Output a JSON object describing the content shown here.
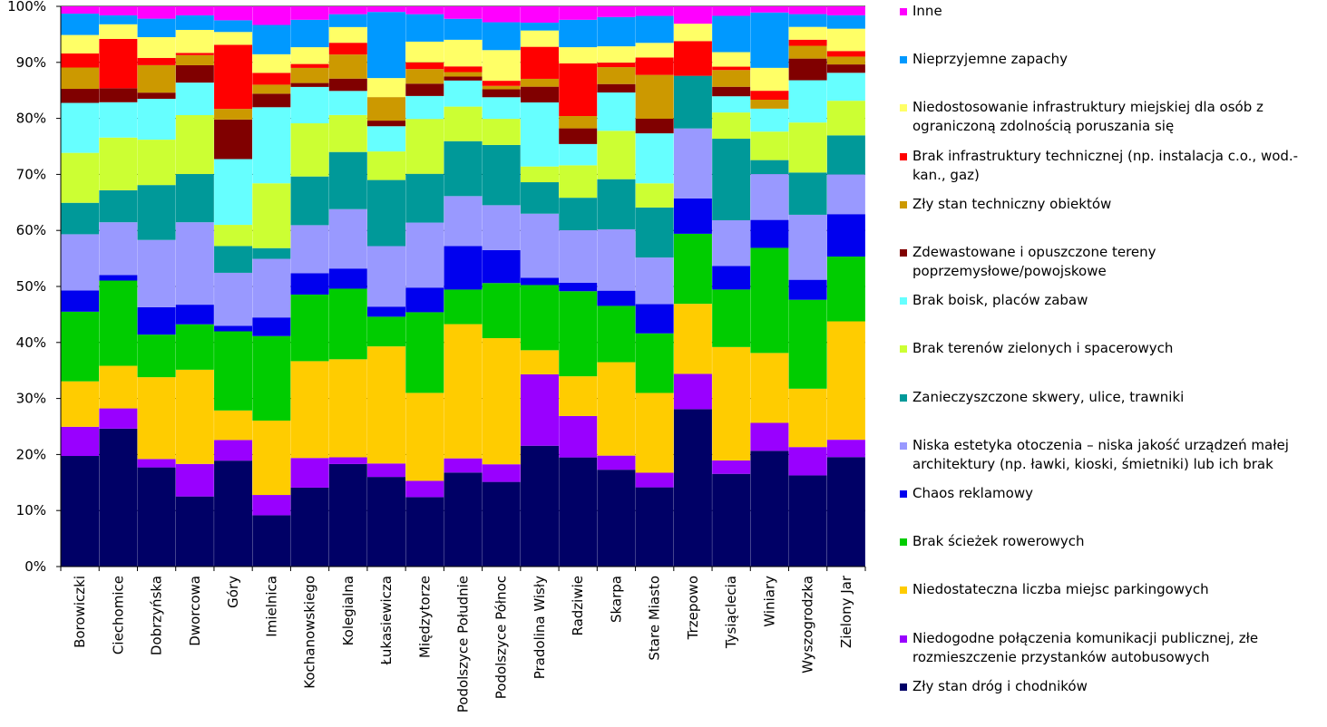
{
  "chart_data": {
    "type": "bar",
    "stacked": true,
    "normalized": true,
    "ylim": [
      0,
      100
    ],
    "y_ticks": [
      "0%",
      "10%",
      "20%",
      "30%",
      "40%",
      "50%",
      "60%",
      "70%",
      "80%",
      "90%",
      "100%"
    ],
    "legend_position": "right",
    "categories": [
      "Borowiczki",
      "Ciechomice",
      "Dobrzyńska",
      "Dworcowa",
      "Góry",
      "Imielnica",
      "Kochanowskiego",
      "Kolegialna",
      "Łukasiewicza",
      "Międzytorze",
      "Podolszyce Południe",
      "Podolszyce Północ",
      "Pradolina Wisły",
      "Radziwie",
      "Skarpa",
      "Stare Miasto",
      "Trzepowo",
      "Tysiąclecia",
      "Winiary",
      "Wyszogrodzka",
      "Zielony Jar"
    ],
    "series": [
      {
        "name": "Zły stan dróg i chodników",
        "color": "#000066",
        "values": [
          19.7,
          24.6,
          17.7,
          12.5,
          19.0,
          9.1,
          14.1,
          18.3,
          16.0,
          12.4,
          16.6,
          14.9,
          21.5,
          19.5,
          17.2,
          14.1,
          28.1,
          16.6,
          20.7,
          16.4,
          19.6
        ]
      },
      {
        "name": "Niedogodne połączenia komunikacji publicznej, złe rozmieszczenie przystanków autobusowych",
        "color": "#9900FF",
        "values": [
          5.2,
          3.6,
          1.5,
          5.8,
          3.7,
          3.6,
          5.3,
          1.2,
          2.4,
          2.9,
          2.5,
          3.1,
          12.7,
          7.4,
          2.5,
          2.6,
          6.3,
          2.4,
          5.0,
          5.1,
          3.1
        ]
      },
      {
        "name": "Niedostateczna liczba miejsc parkingowych",
        "color": "#FFCC00",
        "values": [
          8.1,
          7.6,
          14.6,
          16.8,
          5.3,
          13.2,
          17.3,
          17.5,
          20.9,
          15.7,
          23.7,
          22.2,
          4.3,
          7.1,
          16.6,
          14.2,
          12.5,
          20.3,
          12.5,
          10.5,
          21.2
        ]
      },
      {
        "name": "Brak ścieżek rowerowych",
        "color": "#00CC00",
        "values": [
          12.4,
          15.2,
          7.6,
          8.1,
          14.2,
          15.0,
          11.9,
          12.6,
          5.3,
          14.4,
          6.1,
          9.7,
          11.6,
          15.2,
          10.0,
          10.6,
          12.5,
          10.3,
          18.8,
          16.0,
          11.6
        ]
      },
      {
        "name": "Chaos reklamowy",
        "color": "#0000EE",
        "values": [
          3.8,
          1.0,
          4.9,
          3.5,
          1.0,
          3.3,
          3.8,
          3.6,
          1.8,
          4.4,
          7.7,
          5.8,
          1.3,
          1.5,
          2.7,
          5.2,
          6.3,
          4.2,
          5.0,
          3.6,
          7.6
        ]
      },
      {
        "name": "Niska estetyka otoczenia – niska jakość urządzeń małej architektury (np. ławki, kioski, śmietniki) lub ich brak",
        "color": "#9999FF",
        "values": [
          10.0,
          9.4,
          12.0,
          14.7,
          9.5,
          10.4,
          8.6,
          10.6,
          10.8,
          11.6,
          8.8,
          7.9,
          11.4,
          9.4,
          10.9,
          8.3,
          12.5,
          8.2,
          8.2,
          11.7,
          7.1
        ]
      },
      {
        "name": "Zanieczyszczone skwery, ulice, trawniki",
        "color": "#009999",
        "values": [
          5.6,
          5.7,
          9.8,
          8.6,
          4.8,
          1.9,
          8.7,
          10.2,
          11.8,
          8.7,
          9.7,
          10.6,
          5.6,
          5.8,
          8.9,
          8.9,
          9.4,
          14.6,
          2.5,
          7.6,
          7.0
        ]
      },
      {
        "name": "Brak terenów zielonych i spacerowych",
        "color": "#CCFF33",
        "values": [
          8.9,
          9.4,
          8.1,
          10.5,
          3.8,
          11.5,
          9.5,
          6.6,
          5.1,
          9.8,
          6.1,
          4.6,
          2.8,
          5.8,
          8.6,
          4.3,
          0.0,
          4.7,
          5.1,
          9.0,
          6.2
        ]
      },
      {
        "name": "Brak boisk, placów zabaw",
        "color": "#66FFFF",
        "values": [
          8.9,
          6.3,
          7.3,
          5.8,
          11.8,
          13.5,
          6.5,
          4.3,
          4.5,
          4.1,
          4.6,
          3.8,
          11.4,
          3.8,
          6.8,
          8.9,
          0.0,
          2.9,
          4.1,
          7.6,
          5.0
        ]
      },
      {
        "name": "Zdewastowane i opuszczone tereny poprzemysłowe/powojskowe",
        "color": "#800000",
        "values": [
          2.5,
          2.5,
          1.1,
          3.1,
          7.1,
          2.4,
          0.7,
          2.2,
          1.0,
          2.2,
          0.7,
          1.4,
          2.8,
          2.8,
          1.5,
          2.6,
          0.0,
          1.7,
          0.0,
          3.9,
          1.5
        ]
      },
      {
        "name": "Zły stan techniczny obiektów",
        "color": "#CC9900",
        "values": [
          3.8,
          0.0,
          4.9,
          1.8,
          1.9,
          1.6,
          2.7,
          4.3,
          4.2,
          2.6,
          0.8,
          0.6,
          1.4,
          2.2,
          3.0,
          7.8,
          0.0,
          3.0,
          1.6,
          2.3,
          1.4
        ]
      },
      {
        "name": "Brak infrastruktury technicznej (np. instalacja c.o., wod.-kan., gaz)",
        "color": "#FF0000",
        "values": [
          2.5,
          8.8,
          1.3,
          0.4,
          11.5,
          2.1,
          0.7,
          2.1,
          0.0,
          1.2,
          1.0,
          0.9,
          5.7,
          9.4,
          0.8,
          3.1,
          6.2,
          0.6,
          1.6,
          1.1,
          1.0
        ]
      },
      {
        "name": "Niedostosowanie infrastruktury miejskiej dla osób z ograniczoną zdolnością poruszania się",
        "color": "#FFFF66",
        "values": [
          3.3,
          2.6,
          3.7,
          4.1,
          2.3,
          3.3,
          3.0,
          2.8,
          3.4,
          3.7,
          4.7,
          5.4,
          2.9,
          2.9,
          2.9,
          2.6,
          3.1,
          2.6,
          4.1,
          2.3,
          4.0
        ]
      },
      {
        "name": "Nieprzyjemne zapachy",
        "color": "#0099FF",
        "values": [
          3.8,
          1.6,
          3.3,
          2.6,
          2.1,
          5.2,
          4.9,
          2.3,
          11.8,
          4.9,
          3.7,
          4.9,
          1.4,
          4.9,
          5.2,
          4.8,
          0.0,
          6.5,
          9.9,
          2.3,
          2.4
        ]
      },
      {
        "name": "Inne",
        "color": "#FF00FF",
        "values": [
          1.3,
          1.6,
          2.2,
          1.6,
          2.5,
          3.3,
          2.4,
          1.4,
          1.0,
          1.4,
          2.2,
          2.8,
          2.9,
          2.4,
          1.9,
          1.7,
          3.1,
          1.7,
          1.1,
          1.4,
          1.6
        ]
      }
    ]
  }
}
